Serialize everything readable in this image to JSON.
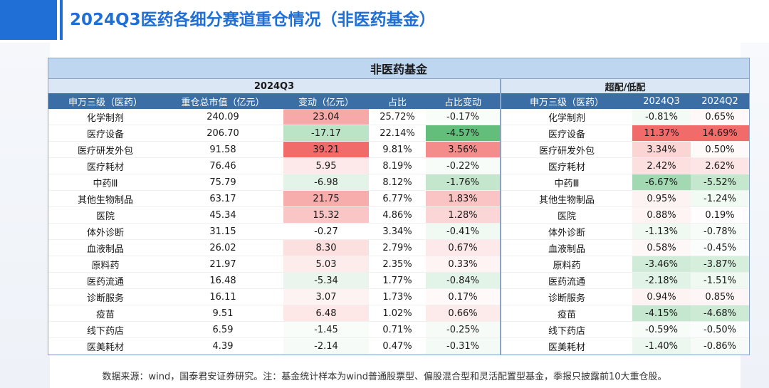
{
  "title": "2024Q3医药各细分赛道重仓情况（非医药基金）",
  "table": {
    "main_header": "非医药基金",
    "group_left": "2024Q3",
    "group_right": "超配/低配",
    "columns_left": [
      "申万三级（医药）",
      "重仓总市值（亿元）",
      "变动（亿元）",
      "占比",
      "占比变动"
    ],
    "columns_right": [
      "申万三级（医药）",
      "2024Q3",
      "2024Q2"
    ],
    "rows": [
      {
        "name": "化学制剂",
        "value": "240.09",
        "change": "23.04",
        "share": "25.72%",
        "share_change": "-0.17%",
        "name2": "化学制剂",
        "q3": "-0.81%",
        "q2": "0.65%"
      },
      {
        "name": "医疗设备",
        "value": "206.70",
        "change": "-17.17",
        "share": "22.14%",
        "share_change": "-4.57%",
        "name2": "医疗设备",
        "q3": "11.37%",
        "q2": "14.69%"
      },
      {
        "name": "医疗研发外包",
        "value": "91.58",
        "change": "39.21",
        "share": "9.81%",
        "share_change": "3.56%",
        "name2": "医疗研发外包",
        "q3": "3.34%",
        "q2": "0.50%"
      },
      {
        "name": "医疗耗材",
        "value": "76.46",
        "change": "5.95",
        "share": "8.19%",
        "share_change": "-0.22%",
        "name2": "医疗耗材",
        "q3": "2.42%",
        "q2": "2.62%"
      },
      {
        "name": "中药Ⅲ",
        "value": "75.79",
        "change": "-6.98",
        "share": "8.12%",
        "share_change": "-1.76%",
        "name2": "中药Ⅲ",
        "q3": "-6.67%",
        "q2": "-5.52%"
      },
      {
        "name": "其他生物制品",
        "value": "63.17",
        "change": "21.75",
        "share": "6.77%",
        "share_change": "1.83%",
        "name2": "其他生物制品",
        "q3": "0.95%",
        "q2": "-1.24%"
      },
      {
        "name": "医院",
        "value": "45.34",
        "change": "15.32",
        "share": "4.86%",
        "share_change": "1.28%",
        "name2": "医院",
        "q3": "0.88%",
        "q2": "0.19%"
      },
      {
        "name": "体外诊断",
        "value": "31.15",
        "change": "-0.27",
        "share": "3.34%",
        "share_change": "-0.41%",
        "name2": "体外诊断",
        "q3": "-1.13%",
        "q2": "-0.78%"
      },
      {
        "name": "血液制品",
        "value": "26.02",
        "change": "8.30",
        "share": "2.79%",
        "share_change": "0.67%",
        "name2": "血液制品",
        "q3": "0.58%",
        "q2": "-0.45%"
      },
      {
        "name": "原料药",
        "value": "21.97",
        "change": "5.03",
        "share": "2.35%",
        "share_change": "0.33%",
        "name2": "原料药",
        "q3": "-3.46%",
        "q2": "-3.87%"
      },
      {
        "name": "医药流通",
        "value": "16.48",
        "change": "-5.34",
        "share": "1.77%",
        "share_change": "-0.84%",
        "name2": "医药流通",
        "q3": "-2.18%",
        "q2": "-1.51%"
      },
      {
        "name": "诊断服务",
        "value": "16.11",
        "change": "3.07",
        "share": "1.73%",
        "share_change": "0.17%",
        "name2": "诊断服务",
        "q3": "0.94%",
        "q2": "0.85%"
      },
      {
        "name": "疫苗",
        "value": "9.51",
        "change": "6.48",
        "share": "1.02%",
        "share_change": "0.66%",
        "name2": "疫苗",
        "q3": "-4.15%",
        "q2": "-4.68%"
      },
      {
        "name": "线下药店",
        "value": "6.59",
        "change": "-1.45",
        "share": "0.71%",
        "share_change": "-0.25%",
        "name2": "线下药店",
        "q3": "-0.59%",
        "q2": "-0.50%"
      },
      {
        "name": "医美耗材",
        "value": "4.39",
        "change": "-2.14",
        "share": "0.47%",
        "share_change": "-0.31%",
        "name2": "医美耗材",
        "q3": "-1.40%",
        "q2": "-0.86%"
      }
    ]
  },
  "colors": {
    "positive_strong": "#f26b6b",
    "negative_strong": "#63be7b",
    "header_blue": "#3b6ea5",
    "title_blue": "#1f6fd6"
  },
  "footnote": "数据来源：wind，国泰君安证券研究。注：基金统计样本为wind普通股票型、偏股混合型和灵活配置型基金，季报只披露前10大重仓股。"
}
